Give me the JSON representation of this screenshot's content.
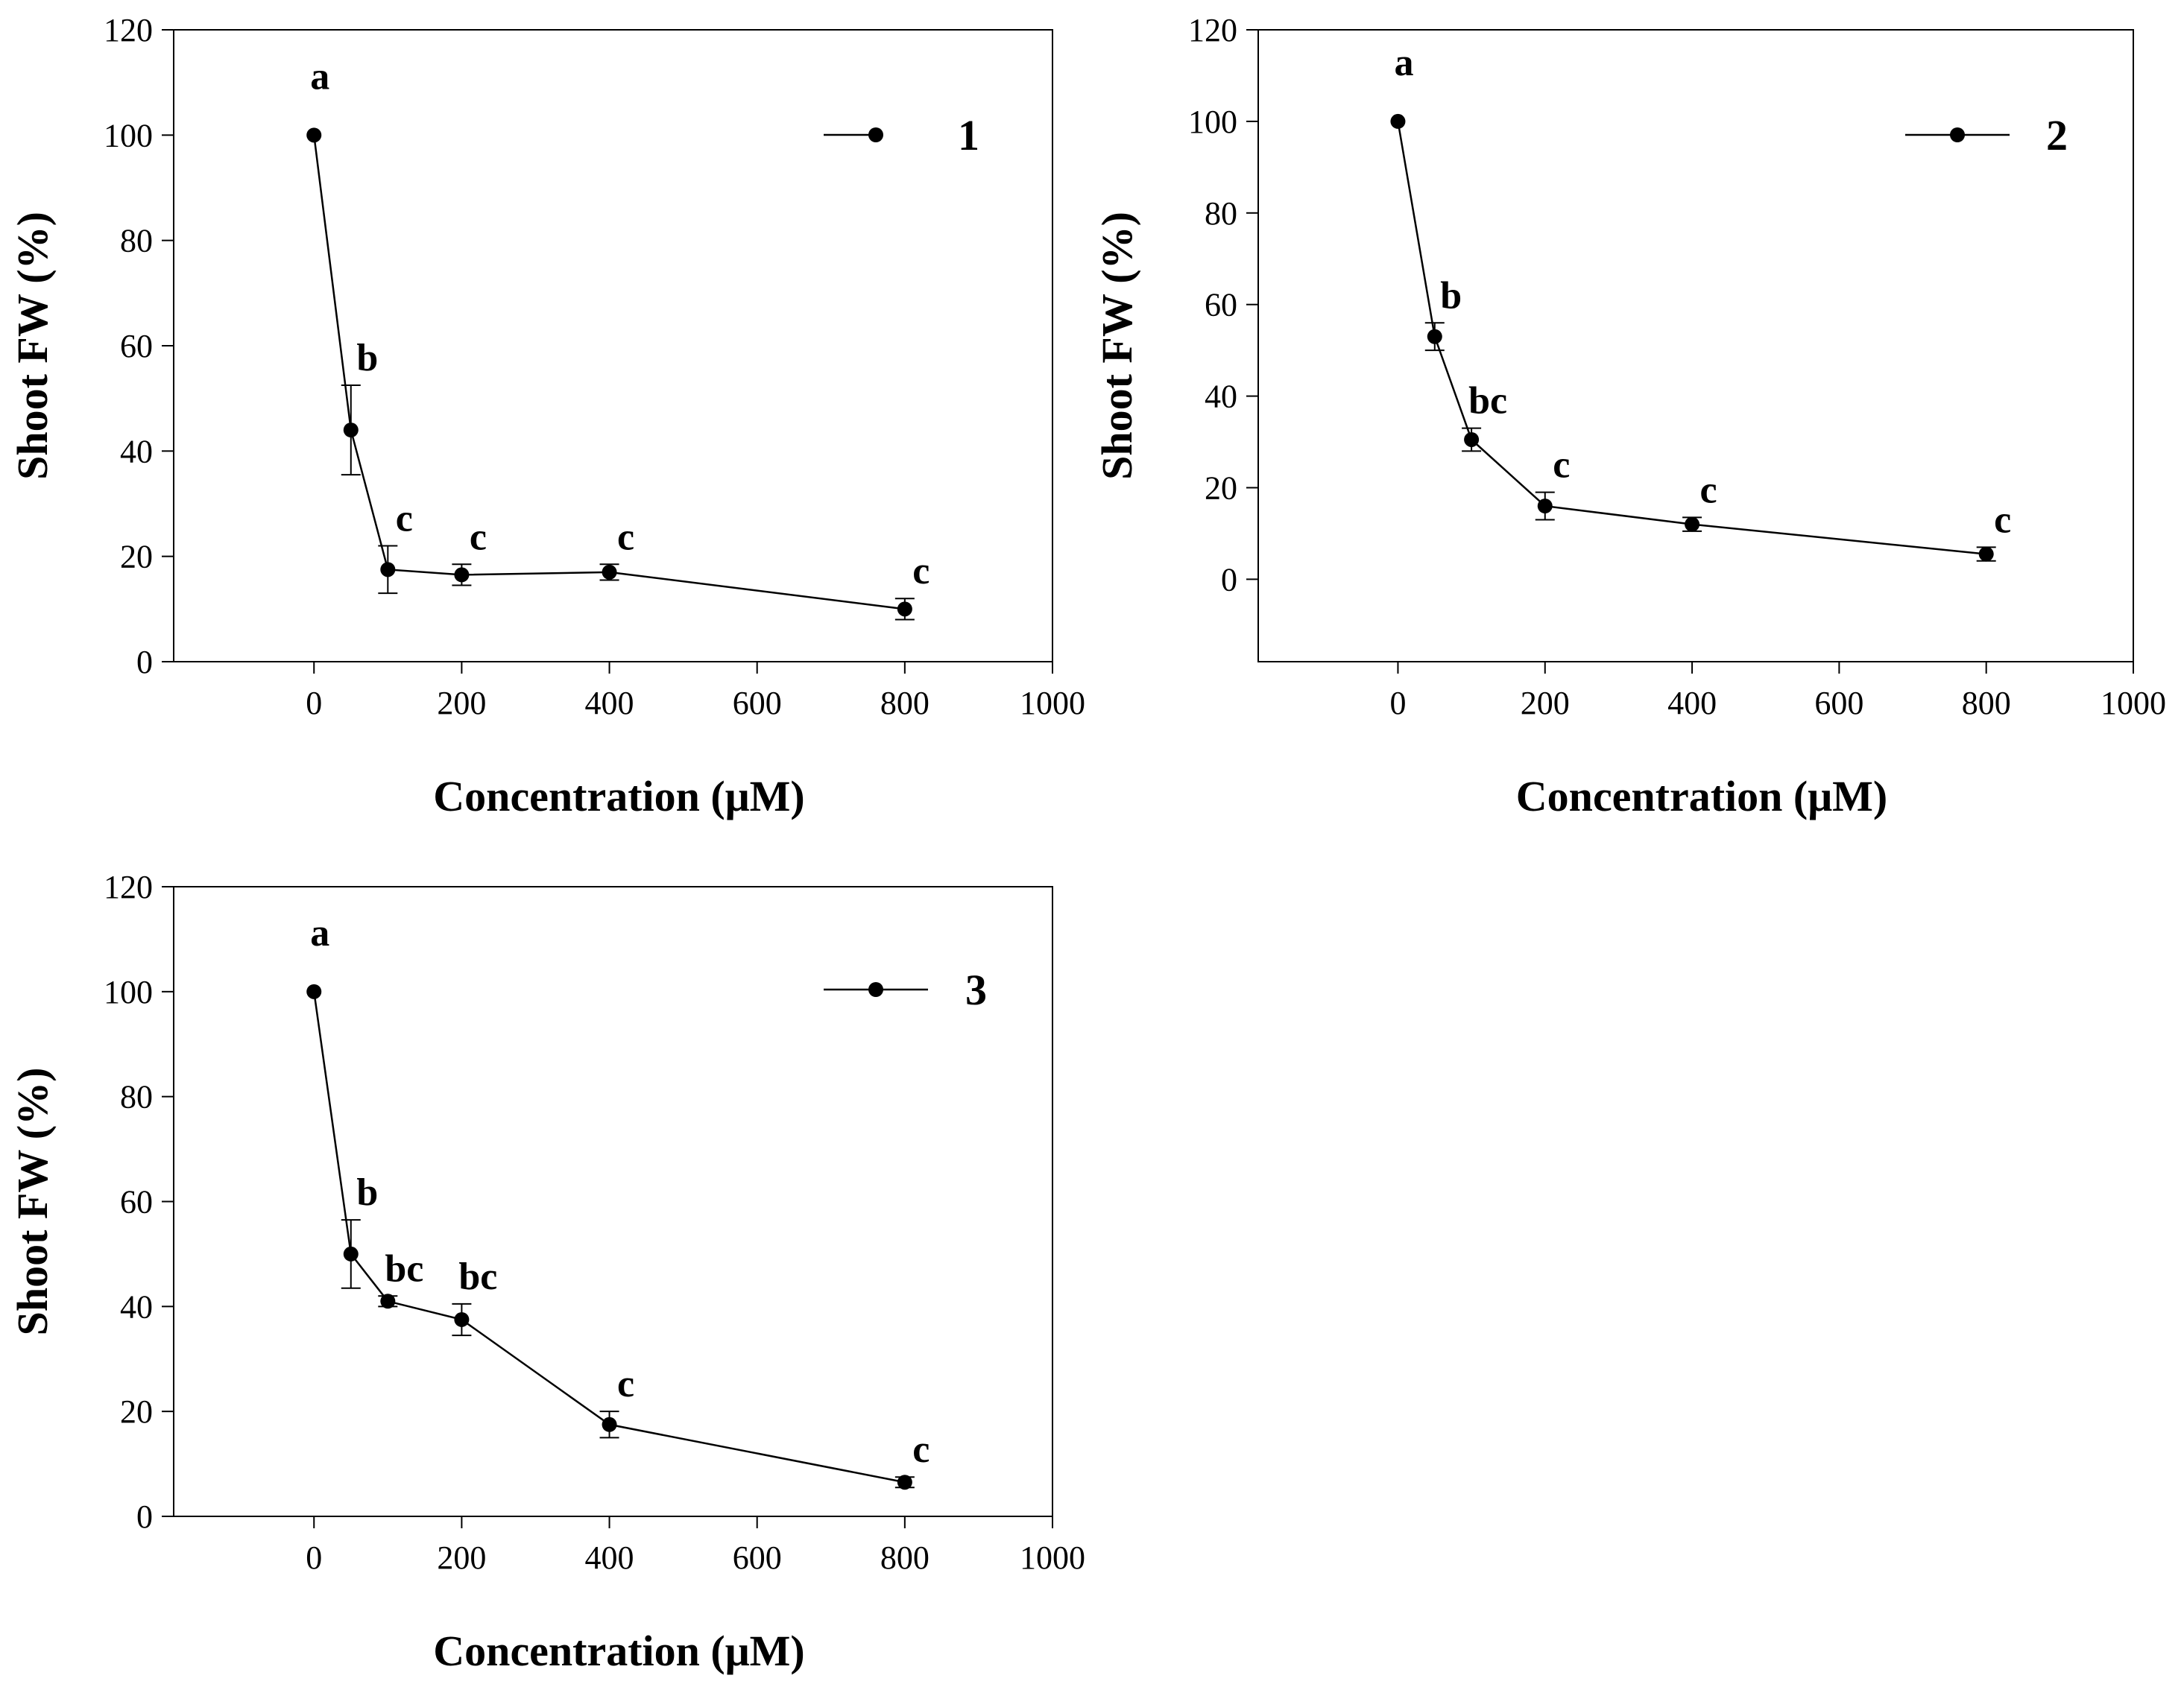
{
  "chart_data": [
    {
      "type": "line",
      "panel": "1",
      "xlabel": "Concentration (μM)",
      "ylabel": "Shoot FW (%)",
      "xlim": [
        -190,
        1000
      ],
      "ylim": [
        0,
        120
      ],
      "xticks": [
        0,
        200,
        400,
        600,
        800,
        1000
      ],
      "yticks": [
        0,
        20,
        40,
        60,
        80,
        100,
        120
      ],
      "legend": {
        "label": "1",
        "position": "top-right"
      },
      "series": [
        {
          "name": "1",
          "x": [
            0,
            50,
            100,
            200,
            400,
            800
          ],
          "y": [
            100,
            44,
            17.5,
            16.5,
            17,
            10
          ],
          "err": [
            0,
            8.5,
            4.5,
            2,
            1.5,
            2
          ],
          "labels": [
            "a",
            "b",
            "c",
            "c",
            "c",
            "c"
          ]
        }
      ]
    },
    {
      "type": "line",
      "panel": "2",
      "xlabel": "Concentration (μM)",
      "ylabel": "Shoot FW (%)",
      "xlim": [
        -190,
        1000
      ],
      "ylim": [
        -18,
        120
      ],
      "xticks": [
        0,
        200,
        400,
        600,
        800,
        1000
      ],
      "yticks": [
        0,
        20,
        40,
        60,
        80,
        100,
        120
      ],
      "legend": {
        "label": "2",
        "position": "top-right"
      },
      "series": [
        {
          "name": "2",
          "x": [
            0,
            50,
            100,
            200,
            400,
            800
          ],
          "y": [
            100,
            53,
            30.5,
            16,
            12,
            5.5
          ],
          "err": [
            0,
            3,
            2.5,
            3,
            1.5,
            1.5
          ],
          "labels": [
            "a",
            "b",
            "bc",
            "c",
            "c",
            "c"
          ]
        }
      ]
    },
    {
      "type": "line",
      "panel": "3",
      "xlabel": "Concentration (μM)",
      "ylabel": "Shoot FW (%)",
      "xlim": [
        -190,
        1000
      ],
      "ylim": [
        0,
        120
      ],
      "xticks": [
        0,
        200,
        400,
        600,
        800,
        1000
      ],
      "yticks": [
        0,
        20,
        40,
        60,
        80,
        100,
        120
      ],
      "legend": {
        "label": "3",
        "position": "top-right"
      },
      "series": [
        {
          "name": "3",
          "x": [
            0,
            50,
            100,
            200,
            400,
            800
          ],
          "y": [
            100,
            50,
            41,
            37.5,
            17.5,
            6.5
          ],
          "err": [
            0,
            6.5,
            1,
            3,
            2.5,
            1
          ],
          "labels": [
            "a",
            "b",
            "bc",
            "bc",
            "c",
            "c"
          ]
        }
      ]
    }
  ]
}
